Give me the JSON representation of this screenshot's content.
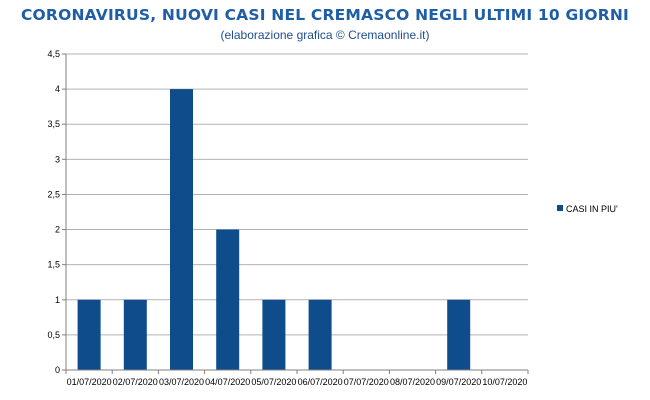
{
  "title": "CORONAVIRUS, NUOVI CASI NEL CREMASCO NEGLI ULTIMI 10 GIORNI",
  "subtitle": "(elaborazione grafica © Cremaonline.it)",
  "colors": {
    "title": "#1f5da6",
    "subtitle": "#1f4e8c",
    "bar": "#0f4c8c",
    "grid": "#b3b3b3",
    "axis": "#808080"
  },
  "chart_data": {
    "type": "bar",
    "title": "CORONAVIRUS, NUOVI CASI NEL CREMASCO NEGLI ULTIMI 10 GIORNI",
    "subtitle": "(elaborazione grafica © Cremaonline.it)",
    "categories": [
      "01/07/2020",
      "02/07/2020",
      "03/07/2020",
      "04/07/2020",
      "05/07/2020",
      "06/07/2020",
      "07/07/2020",
      "08/07/2020",
      "09/07/2020",
      "10/07/2020"
    ],
    "series": [
      {
        "name": "CASI IN PIU'",
        "values": [
          1,
          1,
          4,
          2,
          1,
          1,
          0,
          0,
          1,
          0
        ]
      }
    ],
    "y_ticks": [
      "0",
      "0,5",
      "1",
      "1,5",
      "2",
      "2,5",
      "3",
      "3,5",
      "4",
      "4,5"
    ],
    "ylim": [
      0,
      4.5
    ],
    "grid": true,
    "legend_position": "right"
  }
}
